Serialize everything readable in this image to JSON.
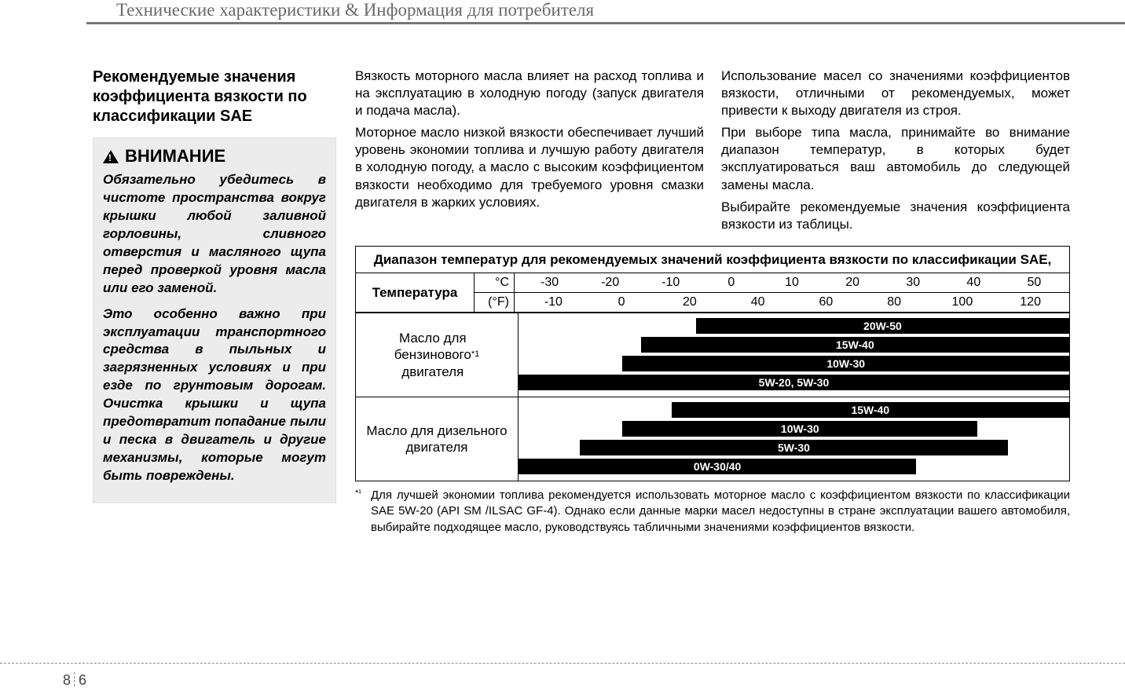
{
  "header_title": "Технические характеристики & Информация для потребителя",
  "page_number_left": "8",
  "page_number_right": "6",
  "col1": {
    "section_title": "Рекомендуемые значения коэффициента вязкости по классификации SAE",
    "caution_heading": "ВНИМАНИЕ",
    "caution_p1": "Обязательно убедитесь в чистоте пространства вокруг крышки любой заливной горловины, сливного отверстия и масляного щупа перед проверкой уровня масла или его заменой.",
    "caution_p2": "Это особенно важно при эксплуатации транспортного средства в пыльных и загрязненных условиях и при езде по грунтовым дорогам. Очистка крышки и щупа предотвратит попадание пыли и песка в двигатель и другие механизмы, которые могут быть повреждены."
  },
  "col2": {
    "p1": "Вязкость моторного масла влияет на расход топлива и на эксплуатацию в холодную погоду (запуск двигателя и подача масла).",
    "p2": "Моторное масло низкой вязкости обеспечивает лучший уровень экономии топлива и лучшую работу двигателя в холодную погоду, а масло с высоким коэффициентом вязкости необходимо для требуемого уровня смазки двигателя в жарких условиях."
  },
  "col3": {
    "p1": "Использование масел со значениями коэффициентов вязкости, отличными от рекомендуемых, может привести к выходу двигателя из строя.",
    "p2": "При выборе типа масла, принимайте во внимание диапазон температур, в которых будет эксплуатироваться ваш автомобиль до следующей замены масла.",
    "p3": "Выбирайте рекомендуемые значения коэффициента вязкости из таблицы."
  },
  "table": {
    "title": "Диапазон температур для рекомендуемых значений коэффициента вязкости по классификации SAE,",
    "temp_label": "Температура",
    "unit_c": "°C",
    "unit_f": "(°F)",
    "c_values": [
      "-30",
      "-20",
      "-10",
      "0",
      "10",
      "20",
      "30",
      "40",
      "50"
    ],
    "f_values": [
      "-10",
      "0",
      "20",
      "40",
      "60",
      "80",
      "100",
      "120"
    ],
    "chart_min_c": -35,
    "chart_max_c": 55,
    "gasoline": {
      "label": "Масло для бензинового двигателя *¹",
      "bars": [
        {
          "label": "20W-50",
          "min_c": -6,
          "max_c": 55
        },
        {
          "label": "15W-40",
          "min_c": -15,
          "max_c": 55
        },
        {
          "label": "10W-30",
          "min_c": -18,
          "max_c": 55
        },
        {
          "label": "5W-20, 5W-30",
          "min_c": -35,
          "max_c": 55
        }
      ]
    },
    "diesel": {
      "label": "Масло для дизельного двигателя",
      "bars": [
        {
          "label": "15W-40",
          "min_c": -10,
          "max_c": 55
        },
        {
          "label": "10W-30",
          "min_c": -18,
          "max_c": 40
        },
        {
          "label": "5W-30",
          "min_c": -25,
          "max_c": 45
        },
        {
          "label": "0W-30/40",
          "min_c": -35,
          "max_c": 30
        }
      ]
    }
  },
  "footnote_marker": "*¹",
  "footnote": "Для лучшей экономии топлива рекомендуется использовать моторное масло с коэффициентом вязкости по классификации SAE 5W-20 (API SM /ILSAC GF-4). Однако если данные марки масел недоступны в стране эксплуатации вашего автомобиля, выбирайте подходящее масло, руководствуясь табличными значениями коэффициентов вязкости."
}
